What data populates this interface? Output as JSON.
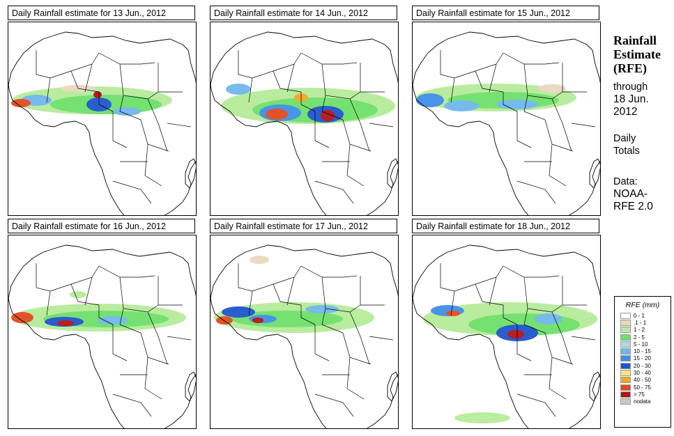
{
  "panels": [
    {
      "title": "Daily Rainfall estimate for  13 Jun., 2012"
    },
    {
      "title": "Daily Rainfall estimate for  14 Jun., 2012"
    },
    {
      "title": "Daily Rainfall estimate for  15 Jun., 2012"
    },
    {
      "title": "Daily Rainfall estimate for  16 Jun., 2012"
    },
    {
      "title": "Daily Rainfall estimate for  17 Jun., 2012"
    },
    {
      "title": "Daily Rainfall estimate for  18 Jun., 2012"
    }
  ],
  "sidebar": {
    "title_lines": [
      "Rainfall",
      "Estimate",
      "(RFE)"
    ],
    "through_label": "through",
    "through_date": "18 Jun.",
    "through_year": "2012",
    "totals_lines": [
      "Daily",
      "Totals"
    ],
    "data_label": "Data:",
    "data_source_lines": [
      "NOAA-",
      "RFE 2.0"
    ]
  },
  "legend": {
    "title": "RFE (mm)",
    "items": [
      {
        "label": "0 - 1",
        "color": "#ffffff"
      },
      {
        "label": ".1 - 1",
        "color": "#e8d9bf"
      },
      {
        "label": "1 - 2",
        "color": "#b6ec9a"
      },
      {
        "label": "2 - 5",
        "color": "#6ee06a"
      },
      {
        "label": "5 - 10",
        "color": "#a9dcef"
      },
      {
        "label": "10 - 15",
        "color": "#6fb8ea"
      },
      {
        "label": "15 - 20",
        "color": "#3f8fe6"
      },
      {
        "label": "20 - 30",
        "color": "#1f55cc"
      },
      {
        "label": "30 - 40",
        "color": "#ffe57a"
      },
      {
        "label": "40 - 50",
        "color": "#f5a623"
      },
      {
        "label": "50 - 75",
        "color": "#e04a1f"
      },
      {
        "label": "> 75",
        "color": "#b81010"
      },
      {
        "label": "nodata",
        "color": "#c8c8c8"
      }
    ]
  }
}
